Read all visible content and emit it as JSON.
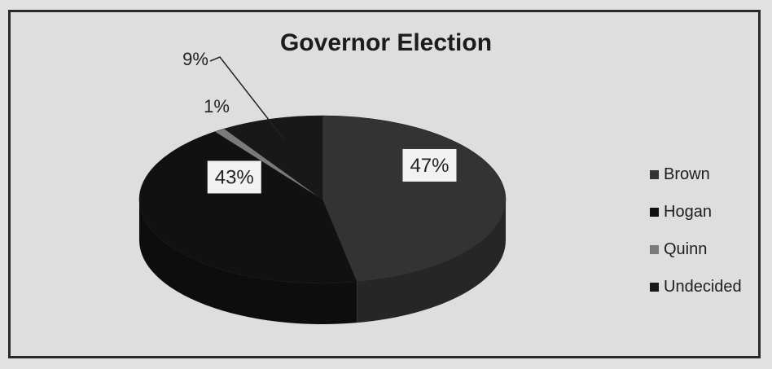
{
  "chart_data": {
    "type": "pie",
    "title": "Governor Election",
    "categories": [
      "Brown",
      "Hogan",
      "Quinn",
      "Undecided"
    ],
    "values": [
      47,
      43,
      1,
      9
    ],
    "labels": [
      "47%",
      "43%",
      "1%",
      "9%"
    ],
    "colors": {
      "Brown": "#333333",
      "Hogan": "#111111",
      "Quinn": "#7a7a7a",
      "Undecided": "#181818"
    },
    "legend_position": "right"
  }
}
